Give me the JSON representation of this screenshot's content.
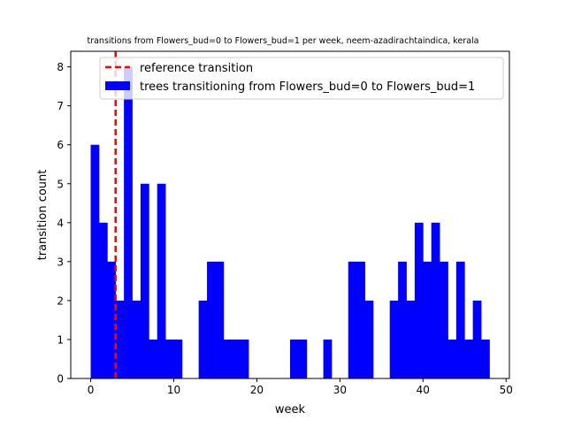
{
  "chart_data": {
    "type": "bar",
    "title": "transitions from Flowers_bud=0 to Flowers_bud=1 per week, neem-azadirachtaindica, kerala",
    "xlabel": "week",
    "ylabel": "transition count",
    "xlim": [
      -2.4,
      50.4
    ],
    "ylim": [
      0,
      8.4
    ],
    "xticks": [
      0,
      10,
      20,
      30,
      40,
      50
    ],
    "yticks": [
      0,
      1,
      2,
      3,
      4,
      5,
      6,
      7,
      8
    ],
    "bin_width": 1,
    "bins": [
      {
        "start": 0,
        "value": 6
      },
      {
        "start": 1,
        "value": 4
      },
      {
        "start": 2,
        "value": 3
      },
      {
        "start": 3,
        "value": 2
      },
      {
        "start": 4,
        "value": 8
      },
      {
        "start": 5,
        "value": 2
      },
      {
        "start": 6,
        "value": 5
      },
      {
        "start": 7,
        "value": 1
      },
      {
        "start": 8,
        "value": 5
      },
      {
        "start": 9,
        "value": 1
      },
      {
        "start": 10,
        "value": 1
      },
      {
        "start": 13,
        "value": 2
      },
      {
        "start": 14,
        "value": 3
      },
      {
        "start": 15,
        "value": 3
      },
      {
        "start": 16,
        "value": 1
      },
      {
        "start": 17,
        "value": 1
      },
      {
        "start": 18,
        "value": 1
      },
      {
        "start": 24,
        "value": 1
      },
      {
        "start": 25,
        "value": 1
      },
      {
        "start": 28,
        "value": 1
      },
      {
        "start": 31,
        "value": 3
      },
      {
        "start": 32,
        "value": 3
      },
      {
        "start": 33,
        "value": 2
      },
      {
        "start": 36,
        "value": 2
      },
      {
        "start": 37,
        "value": 3
      },
      {
        "start": 38,
        "value": 2
      },
      {
        "start": 39,
        "value": 4
      },
      {
        "start": 40,
        "value": 3
      },
      {
        "start": 41,
        "value": 4
      },
      {
        "start": 42,
        "value": 3
      },
      {
        "start": 43,
        "value": 1
      },
      {
        "start": 44,
        "value": 3
      },
      {
        "start": 45,
        "value": 1
      },
      {
        "start": 46,
        "value": 2
      },
      {
        "start": 47,
        "value": 1
      }
    ],
    "reference_week": 3.0,
    "bar_color": "#0000ff",
    "reference_color": "#ff0000",
    "legend": {
      "placement": "top-right",
      "entries": [
        {
          "label": "reference transition",
          "kind": "dashed-line"
        },
        {
          "label": "trees transitioning from Flowers_bud=0 to Flowers_bud=1",
          "kind": "patch"
        }
      ]
    }
  }
}
